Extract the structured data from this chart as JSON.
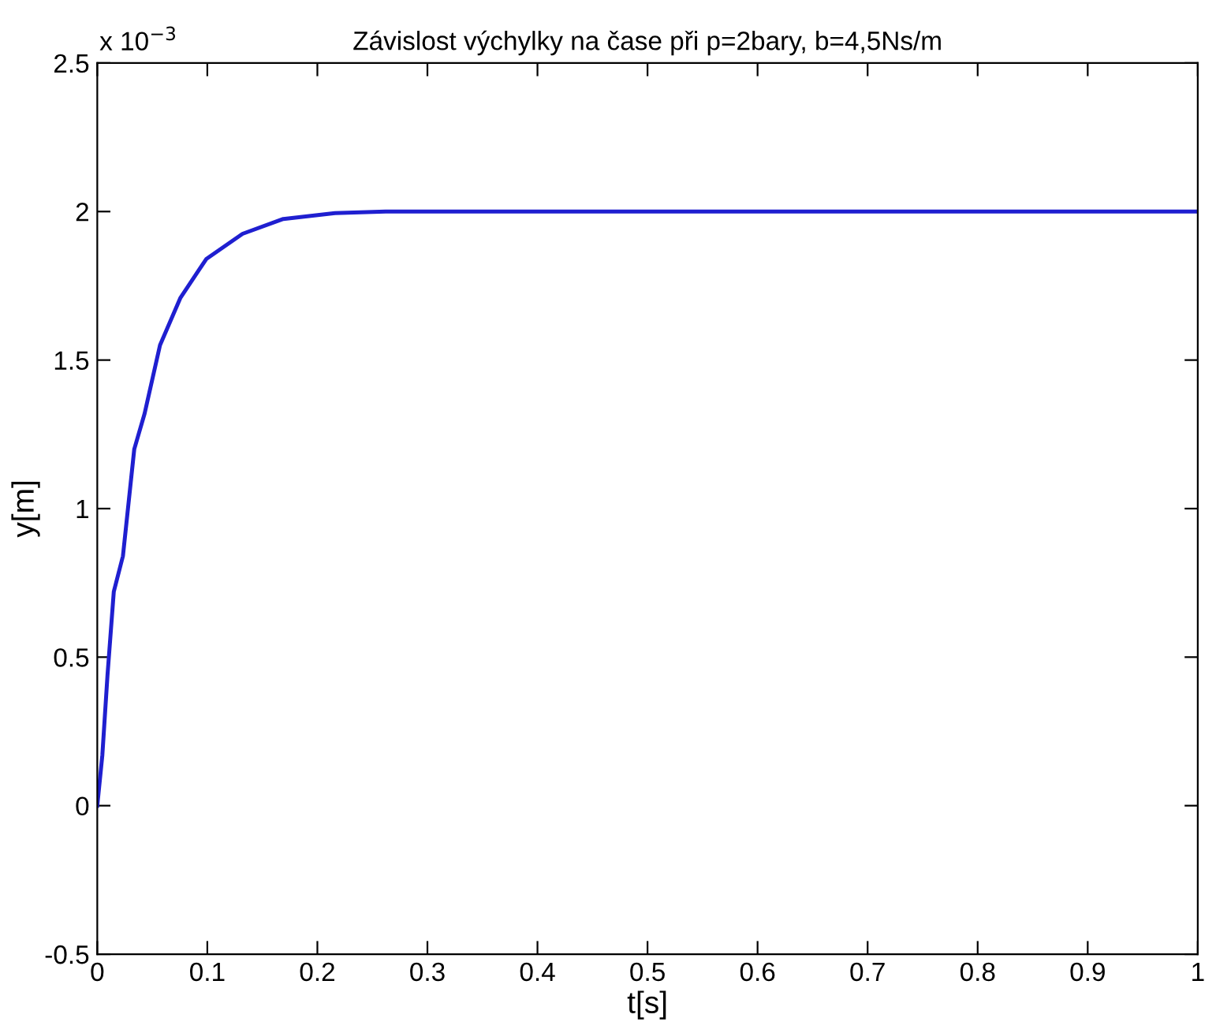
{
  "chart_data": {
    "type": "line",
    "title": "Závislost výchylky na čase při p=2bary, b=4,5Ns/m",
    "xlabel": "t[s]",
    "ylabel": "y[m]",
    "annotations": [
      "x 10$^{−3}$"
    ],
    "series": [
      {
        "color": "#1f1fd0",
        "x": [
          0,
          0.0046,
          0.0093,
          0.015,
          0.0233,
          0.0336,
          0.043,
          0.057,
          0.0756,
          0.099,
          0.132,
          0.169,
          0.216,
          0.262,
          0.4,
          0.6,
          0.8,
          1.0
        ],
        "values": [
          0,
          0.17,
          0.44,
          0.72,
          0.84,
          1.2,
          1.32,
          1.55,
          1.71,
          1.84,
          1.925,
          1.975,
          1.995,
          2.0,
          2.0,
          2.0,
          2.0,
          2.0
        ]
      }
    ],
    "xlim": [
      0,
      1
    ],
    "xticks": [
      0,
      0.1,
      0.2,
      0.3,
      0.4,
      0.5,
      0.6,
      0.7,
      0.8,
      0.9,
      1
    ],
    "ylim": [
      -0.5,
      2.5
    ],
    "yticks": [
      -0.5,
      0,
      0.5,
      1,
      1.5,
      2,
      2.5
    ],
    "grid": false,
    "legend": false,
    "marker": "none",
    "line_style": "solid"
  }
}
